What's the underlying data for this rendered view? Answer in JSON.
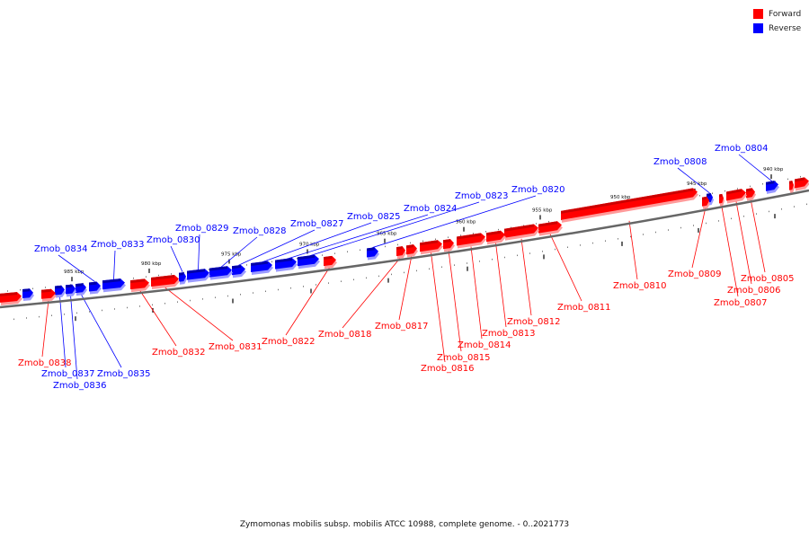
{
  "legend": {
    "forward_label": "Forward",
    "reverse_label": "Reverse",
    "forward_color": "#ff0000",
    "reverse_color": "#0000ff"
  },
  "footer": {
    "caption": "Zymomonas mobilis subsp. mobilis ATCC 10988, complete genome. - 0..2021773"
  },
  "ticks": [
    "940 kbp",
    "945 kbp",
    "950 kbp",
    "955 kbp",
    "960 kbp",
    "965 kbp",
    "970 kbp",
    "975 kbp",
    "980 kbp",
    "985 kbp"
  ],
  "reverse_genes": [
    "Zmob_0804",
    "Zmob_0808",
    "Zmob_0820",
    "Zmob_0823",
    "Zmob_0824",
    "Zmob_0825",
    "Zmob_0827",
    "Zmob_0828",
    "Zmob_0829",
    "Zmob_0830",
    "Zmob_0833",
    "Zmob_0834",
    "Zmob_0835",
    "Zmob_0836",
    "Zmob_0837"
  ],
  "forward_genes": [
    "Zmob_0805",
    "Zmob_0806",
    "Zmob_0807",
    "Zmob_0809",
    "Zmob_0810",
    "Zmob_0811",
    "Zmob_0812",
    "Zmob_0813",
    "Zmob_0814",
    "Zmob_0815",
    "Zmob_0816",
    "Zmob_0817",
    "Zmob_0818",
    "Zmob_0822",
    "Zmob_0831",
    "Zmob_0832",
    "Zmob_0838"
  ]
}
